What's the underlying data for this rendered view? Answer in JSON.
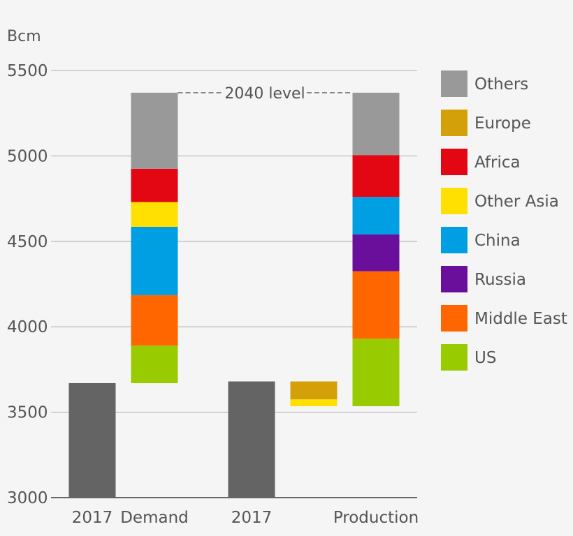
{
  "chart_data": {
    "type": "bar",
    "title": "",
    "y_unit": "Bcm",
    "ylim": [
      3000,
      5500
    ],
    "yticks": [
      3000,
      3500,
      4000,
      4500,
      5000,
      5500
    ],
    "grid": true,
    "legend_placement": "right",
    "annotation": "2040 level",
    "annotation_value": 5370,
    "x_labels": [
      "2017",
      "Demand",
      "2017",
      "",
      "Production"
    ],
    "legend": [
      {
        "name": "Others",
        "color": "#999999"
      },
      {
        "name": "Europe",
        "color": "#d4a00a"
      },
      {
        "name": "Africa",
        "color": "#e30613"
      },
      {
        "name": "Other Asia",
        "color": "#ffe000"
      },
      {
        "name": "China",
        "color": "#009fe3"
      },
      {
        "name": "Russia",
        "color": "#6a0f9c"
      },
      {
        "name": "Middle East",
        "color": "#ff6600"
      },
      {
        "name": "US",
        "color": "#99cc00"
      }
    ],
    "base_color": "#646464",
    "bars": [
      {
        "label": "2017",
        "segments": [
          {
            "series": "2017",
            "from": 3000,
            "to": 3670
          }
        ]
      },
      {
        "label": "Demand",
        "segments": [
          {
            "series": "US",
            "from": 3670,
            "to": 3890
          },
          {
            "series": "Middle East",
            "from": 3890,
            "to": 4185
          },
          {
            "series": "China",
            "from": 4185,
            "to": 4585
          },
          {
            "series": "Other Asia",
            "from": 4585,
            "to": 4730
          },
          {
            "series": "Africa",
            "from": 4730,
            "to": 4925
          },
          {
            "series": "Others",
            "from": 4925,
            "to": 5370
          }
        ]
      },
      {
        "label": "2017",
        "segments": [
          {
            "series": "2017",
            "from": 3000,
            "to": 3680
          }
        ]
      },
      {
        "label": "",
        "segments": [
          {
            "series": "Other Asia",
            "from": 3535,
            "to": 3575
          },
          {
            "series": "Europe",
            "from": 3575,
            "to": 3680
          }
        ]
      },
      {
        "label": "Production",
        "segments": [
          {
            "series": "US",
            "from": 3535,
            "to": 3930
          },
          {
            "series": "Middle East",
            "from": 3930,
            "to": 4325
          },
          {
            "series": "Russia",
            "from": 4325,
            "to": 4540
          },
          {
            "series": "China",
            "from": 4540,
            "to": 4760
          },
          {
            "series": "Africa",
            "from": 4760,
            "to": 5005
          },
          {
            "series": "Others",
            "from": 5005,
            "to": 5370
          }
        ]
      }
    ]
  }
}
